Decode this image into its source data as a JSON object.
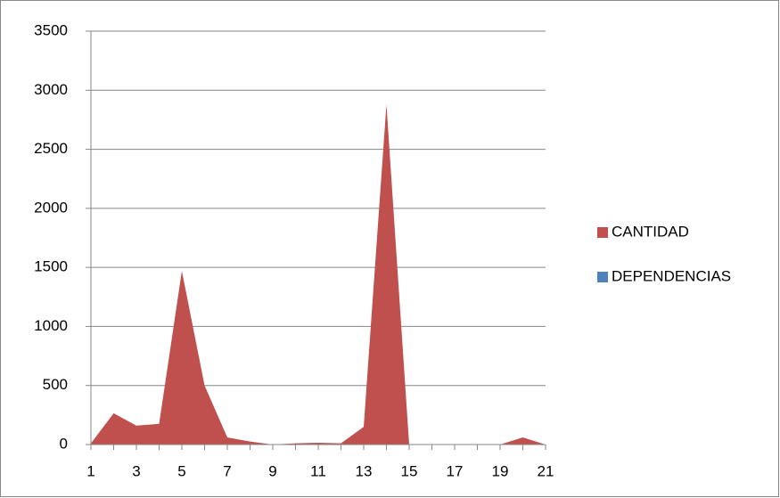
{
  "chart_data": {
    "type": "area",
    "categories": [
      "1",
      null,
      "3",
      null,
      "5",
      null,
      "7",
      null,
      "9",
      null,
      "11",
      null,
      "13",
      null,
      "15",
      null,
      "17",
      null,
      "19",
      null,
      "21"
    ],
    "series": [
      {
        "name": "CANTIDAD",
        "color": "#c0504d",
        "values": [
          10,
          265,
          160,
          175,
          1470,
          500,
          60,
          25,
          0,
          10,
          15,
          10,
          150,
          2880,
          0,
          0,
          0,
          0,
          0,
          60,
          0
        ]
      },
      {
        "name": "DEPENDENCIAS",
        "color": "#4f81bd",
        "values": [
          0,
          0,
          0,
          0,
          0,
          0,
          0,
          0,
          0,
          0,
          0,
          0,
          0,
          0,
          0,
          0,
          0,
          0,
          0,
          0,
          0
        ]
      }
    ],
    "ylim": [
      0,
      3500
    ],
    "yticks": [
      0,
      500,
      1000,
      1500,
      2000,
      2500,
      3000,
      3500
    ],
    "grid": true,
    "legend": "right"
  }
}
